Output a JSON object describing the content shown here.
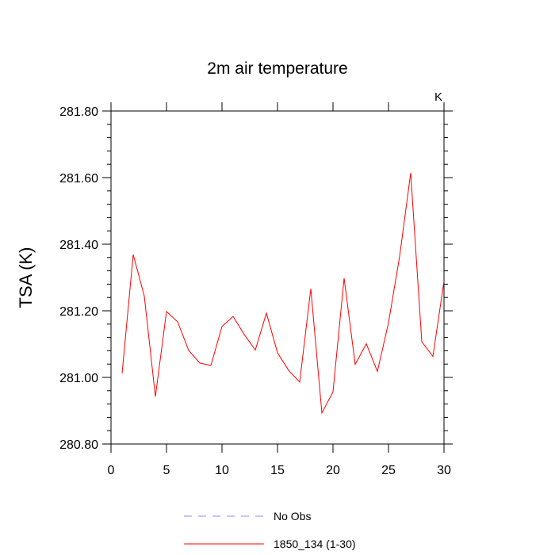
{
  "chart_data": {
    "type": "line",
    "title": "2m air temperature",
    "ylabel": "TSA  (K)",
    "xlabel": "",
    "units_label": "K",
    "xlim": [
      0,
      30
    ],
    "ylim": [
      280.8,
      281.8
    ],
    "x_ticks": [
      0,
      5,
      10,
      15,
      20,
      25,
      30
    ],
    "x_tick_labels": [
      "0",
      "5",
      "10",
      "15",
      "20",
      "25",
      "30"
    ],
    "y_ticks": [
      280.8,
      281.0,
      281.2,
      281.4,
      281.6,
      281.8
    ],
    "y_tick_labels": [
      "280.80",
      "281.00",
      "281.20",
      "281.40",
      "281.60",
      "281.80"
    ],
    "grid": false,
    "legend_position": "bottom",
    "series": [
      {
        "name": "1850_134 (1-30)",
        "color": "#ff0000",
        "dash": "solid",
        "x": [
          1,
          2,
          3,
          4,
          5,
          6,
          7,
          8,
          9,
          10,
          11,
          12,
          13,
          14,
          15,
          16,
          17,
          18,
          19,
          20,
          21,
          22,
          23,
          24,
          25,
          26,
          27,
          28,
          29,
          30
        ],
        "values": [
          281.012,
          281.369,
          281.244,
          280.942,
          281.198,
          281.167,
          281.081,
          281.043,
          281.036,
          281.153,
          281.183,
          281.129,
          281.082,
          281.193,
          281.074,
          281.021,
          280.986,
          281.266,
          280.893,
          280.957,
          281.298,
          281.039,
          281.101,
          281.018,
          281.164,
          281.363,
          281.614,
          281.107,
          281.063,
          281.289
        ]
      }
    ],
    "legend": [
      {
        "label": "No Obs",
        "color": "#8c8cff",
        "dash": "dashed"
      },
      {
        "label": "1850_134 (1-30)",
        "color": "#ff0000",
        "dash": "solid"
      }
    ]
  }
}
